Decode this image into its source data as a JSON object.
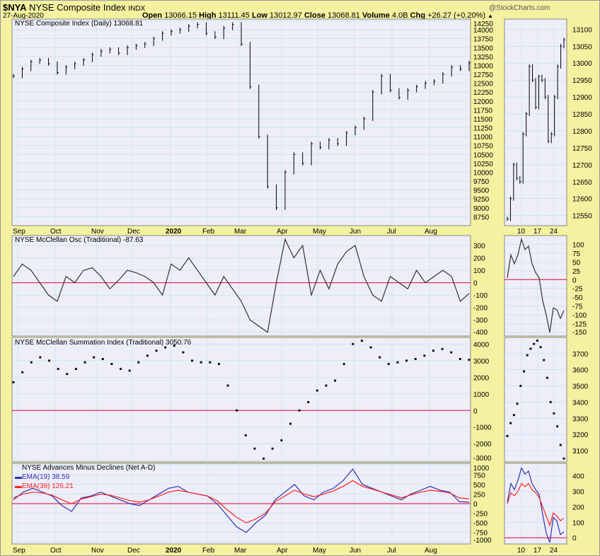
{
  "header": {
    "symbol": "$NYA",
    "name": "NYSE Composite Index",
    "exchange": "INDX",
    "date": "27-Aug-2020",
    "watermark": "@StockCharts.com",
    "open_label": "Open",
    "open": "13066.15",
    "high_label": "High",
    "high": "13111.45",
    "low_label": "Low",
    "low": "13012.97",
    "close_label": "Close",
    "close": "13068.81",
    "volume_label": "Volume",
    "volume": "4.0B",
    "chg_label": "Chg",
    "chg": "+26.27 (+0.20%)"
  },
  "colors": {
    "background": "#f4f1a0",
    "plot": "#eeeef8",
    "grid": "#b8e0f0",
    "zero": "#e0305a",
    "ema19": "#3030b0",
    "ema39": "#ff2020",
    "price": "#000000"
  },
  "chart_data": [
    {
      "type": "bar",
      "title": "NYSE Composite Index (Daily) 13068.81",
      "ylim": [
        8500,
        14300
      ],
      "yticks": [
        14250,
        14000,
        13750,
        13500,
        13250,
        13000,
        12750,
        12500,
        12250,
        12000,
        11750,
        11500,
        11250,
        11000,
        10750,
        10500,
        10250,
        10000,
        9750,
        9500,
        9250,
        9000,
        8750
      ],
      "values": [
        12700,
        12900,
        13100,
        13150,
        13050,
        12800,
        12950,
        13050,
        13150,
        13300,
        13400,
        13450,
        13350,
        13500,
        13550,
        13600,
        13750,
        13900,
        13950,
        14000,
        14100,
        14150,
        13900,
        13800,
        14050,
        14150,
        13600,
        12400,
        11000,
        9600,
        9000,
        10000,
        10500,
        10250,
        10800,
        10700,
        10900,
        10800,
        11100,
        11250,
        11500,
        12250,
        12700,
        12300,
        12100,
        12300,
        12400,
        12500,
        12550,
        12750,
        12950,
        12900,
        13068.81
      ]
    },
    {
      "type": "line",
      "title": "NYSE McClellan Osc (Traditional) -87.63",
      "ylim": [
        -430,
        380
      ],
      "yticks": [
        300,
        200,
        100,
        0,
        -100,
        -200,
        -300,
        -400
      ],
      "values": [
        50,
        150,
        100,
        0,
        -100,
        -150,
        50,
        0,
        100,
        120,
        50,
        -50,
        20,
        100,
        80,
        50,
        0,
        -100,
        150,
        100,
        200,
        100,
        0,
        -100,
        50,
        -50,
        -150,
        -300,
        -350,
        -400,
        0,
        350,
        200,
        300,
        -100,
        100,
        -50,
        150,
        250,
        300,
        50,
        -100,
        -150,
        50,
        0,
        -50,
        100,
        0,
        50,
        100,
        50,
        -150,
        -87.63
      ]
    },
    {
      "type": "scatter",
      "title": "NYSE McClellan Summation Index (Traditional) 3050.76",
      "ylim": [
        -3100,
        4400
      ],
      "yticks": [
        4000,
        3000,
        2000,
        1000,
        0,
        -1000,
        -2000,
        -3000
      ],
      "values": [
        1700,
        2300,
        2900,
        3200,
        3000,
        2500,
        2200,
        2500,
        2900,
        3200,
        3100,
        2800,
        2500,
        2400,
        2900,
        3300,
        3600,
        3800,
        3900,
        3500,
        3000,
        2900,
        2900,
        2800,
        1500,
        0,
        -1500,
        -2300,
        -2900,
        -2300,
        -1800,
        -800,
        0,
        500,
        1200,
        1500,
        1800,
        2800,
        4000,
        4200,
        3800,
        3200,
        2800,
        2900,
        3000,
        3100,
        3300,
        3600,
        3700,
        3500,
        3100,
        3050.76
      ]
    },
    {
      "type": "line",
      "title": "NYSE Advances Minus Declines (Net A-D)",
      "ylim": [
        -1050,
        1050
      ],
      "yticks": [
        1000,
        750,
        500,
        250,
        0,
        -250,
        -500,
        -750,
        -1000
      ],
      "series": [
        {
          "name": "EMA(19) 38.59",
          "values": [
            100,
            300,
            400,
            300,
            200,
            -50,
            -200,
            150,
            200,
            300,
            200,
            100,
            0,
            -50,
            100,
            250,
            400,
            450,
            300,
            250,
            200,
            0,
            -300,
            -600,
            -750,
            -500,
            -300,
            100,
            300,
            500,
            200,
            100,
            300,
            400,
            600,
            900,
            500,
            400,
            300,
            200,
            100,
            250,
            350,
            450,
            350,
            300,
            50,
            38.59
          ]
        },
        {
          "name": "EMA(39) 126.21",
          "values": [
            150,
            250,
            300,
            280,
            220,
            100,
            0,
            120,
            180,
            250,
            220,
            150,
            80,
            40,
            100,
            200,
            300,
            350,
            300,
            250,
            200,
            80,
            -150,
            -350,
            -500,
            -400,
            -250,
            50,
            200,
            350,
            250,
            180,
            250,
            330,
            450,
            600,
            450,
            380,
            300,
            230,
            150,
            230,
            300,
            350,
            320,
            280,
            150,
            126.21
          ]
        }
      ]
    },
    {
      "type": "bar",
      "mini": true,
      "ylim": [
        12520,
        13130
      ],
      "yticks": [
        13100,
        13050,
        13000,
        12950,
        12900,
        12850,
        12800,
        12750,
        12700,
        12650,
        12600,
        12550
      ],
      "values": [
        12540,
        12600,
        12700,
        12660,
        12650,
        12790,
        12850,
        12990,
        12950,
        12870,
        12960,
        12950,
        12900,
        12770,
        12790,
        12900,
        12990,
        13050,
        13068.81
      ]
    },
    {
      "type": "line",
      "mini": true,
      "ylim": [
        -160,
        125
      ],
      "yticks": [
        100,
        75,
        50,
        25,
        0,
        -25,
        -50,
        -75,
        -100,
        -125,
        -150
      ],
      "values": [
        5,
        70,
        45,
        70,
        115,
        85,
        95,
        45,
        20,
        5,
        -60,
        -100,
        -150,
        -80,
        -85,
        -110,
        -87.63
      ]
    },
    {
      "type": "scatter",
      "mini": true,
      "ylim": [
        3030,
        3800
      ],
      "yticks": [
        3700,
        3600,
        3500,
        3400,
        3300,
        3200,
        3100
      ],
      "values": [
        3190,
        3270,
        3320,
        3390,
        3500,
        3590,
        3690,
        3730,
        3760,
        3780,
        3740,
        3660,
        3550,
        3400,
        3330,
        3250,
        3135,
        3050.76
      ]
    },
    {
      "type": "line",
      "mini": true,
      "ylim": [
        -40,
        480
      ],
      "yticks": [
        400,
        300,
        200,
        100,
        0
      ],
      "series": [
        {
          "values": [
            230,
            350,
            310,
            370,
            450,
            410,
            430,
            350,
            310,
            280,
            150,
            30,
            -30,
            130,
            110,
            20,
            38.59
          ]
        },
        {
          "values": [
            220,
            290,
            270,
            300,
            350,
            330,
            350,
            310,
            290,
            260,
            200,
            140,
            80,
            160,
            140,
            110,
            126.21
          ]
        }
      ]
    }
  ],
  "x_axis": {
    "months": [
      "Sep",
      "Oct",
      "Nov",
      "Dec",
      "2020",
      "Feb",
      "Mar",
      "Apr",
      "May",
      "Jun",
      "Jul",
      "Aug"
    ],
    "mini_days": [
      "10",
      "17",
      "24"
    ]
  }
}
